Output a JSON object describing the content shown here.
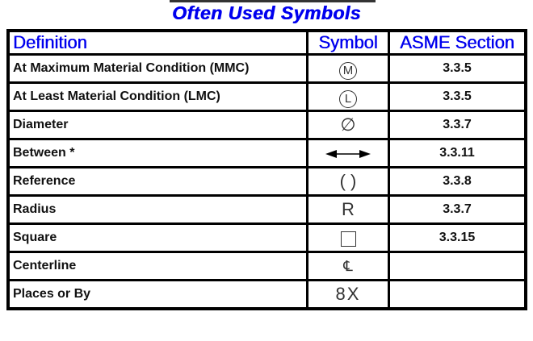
{
  "title": "Often Used Symbols",
  "headers": {
    "definition": "Definition",
    "symbol": "Symbol",
    "section": "ASME Section"
  },
  "rows": [
    {
      "definition": "At Maximum Material Condition (MMC)",
      "symbol": "M",
      "symbol_icon": "circled-m",
      "section": "3.3.5"
    },
    {
      "definition": "At Least Material Condition (LMC)",
      "symbol": "L",
      "symbol_icon": "circled-l",
      "section": "3.3.5"
    },
    {
      "definition": "Diameter",
      "symbol": "∅",
      "symbol_icon": "diameter",
      "section": "3.3.7"
    },
    {
      "definition": "Between *",
      "symbol": "",
      "symbol_icon": "double-arrow",
      "section": "3.3.11"
    },
    {
      "definition": "Reference",
      "symbol": "( )",
      "symbol_icon": "parentheses",
      "section": "3.3.8"
    },
    {
      "definition": "Radius",
      "symbol": "R",
      "symbol_icon": "radius",
      "section": "3.3.7"
    },
    {
      "definition": "Square",
      "symbol": "",
      "symbol_icon": "square",
      "section": "3.3.15"
    },
    {
      "definition": "Centerline",
      "symbol": "℄",
      "symbol_icon": "centerline",
      "section": ""
    },
    {
      "definition": "Places or By",
      "symbol": "8X",
      "symbol_icon": "places",
      "section": ""
    }
  ]
}
